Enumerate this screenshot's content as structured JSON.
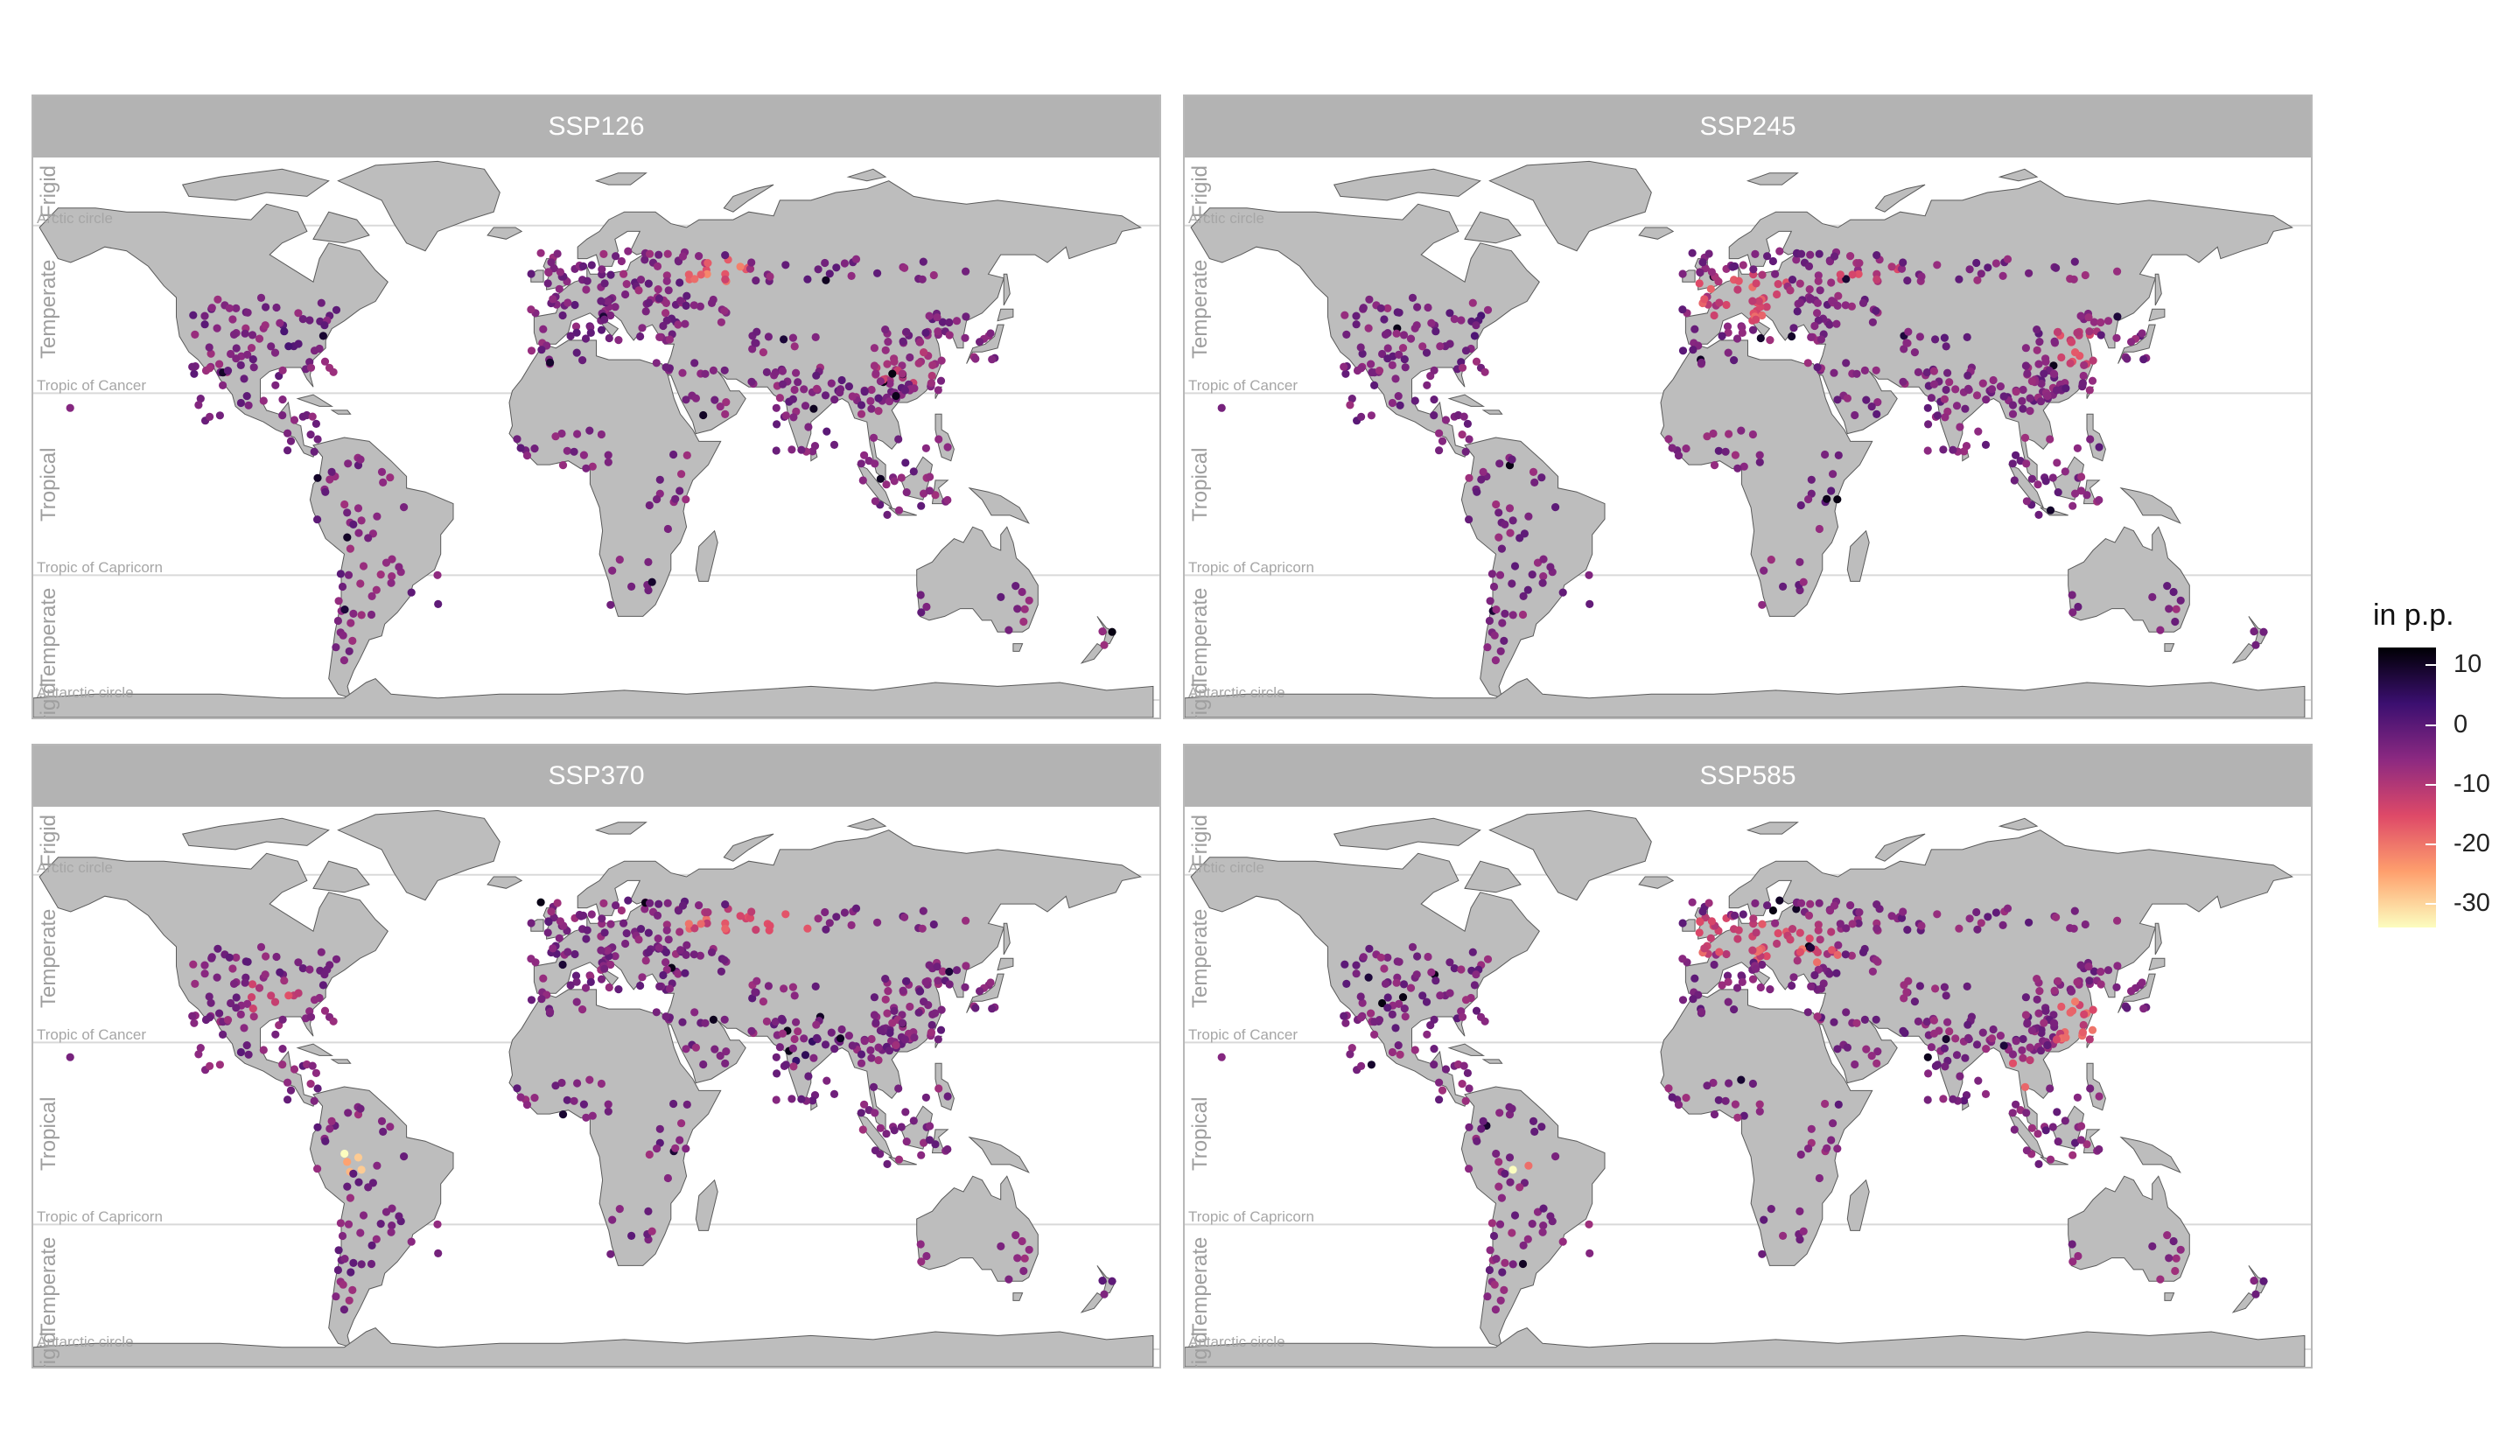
{
  "panels": [
    {
      "title": "SSP126"
    },
    {
      "title": "SSP245"
    },
    {
      "title": "SSP370"
    },
    {
      "title": "SSP585"
    }
  ],
  "zone_labels": {
    "frigid": "Frigid",
    "temperate": "Temperate",
    "tropical": "Tropical",
    "arctic_circle": "Arctic circle",
    "tropic_cancer": "Tropic of Cancer",
    "tropic_capricorn": "Tropic of Capricorn",
    "antarctic_circle": "Antarctic circle"
  },
  "legend": {
    "title": "in p.p.",
    "ticks": [
      "10",
      "0",
      "-10",
      "-20",
      "-30"
    ],
    "tick_values": [
      10,
      0,
      -10,
      -20,
      -30
    ],
    "range": [
      -34,
      13
    ],
    "colors": [
      "#fcfdbf",
      "#fe9f6d",
      "#de4968",
      "#8c2981",
      "#3b0f70",
      "#000004"
    ]
  },
  "colors": {
    "land": "#bdbdbd",
    "coast": "#5a5a5a",
    "strip": "#b3b3b3",
    "gridline": "#d9d9d9"
  }
}
